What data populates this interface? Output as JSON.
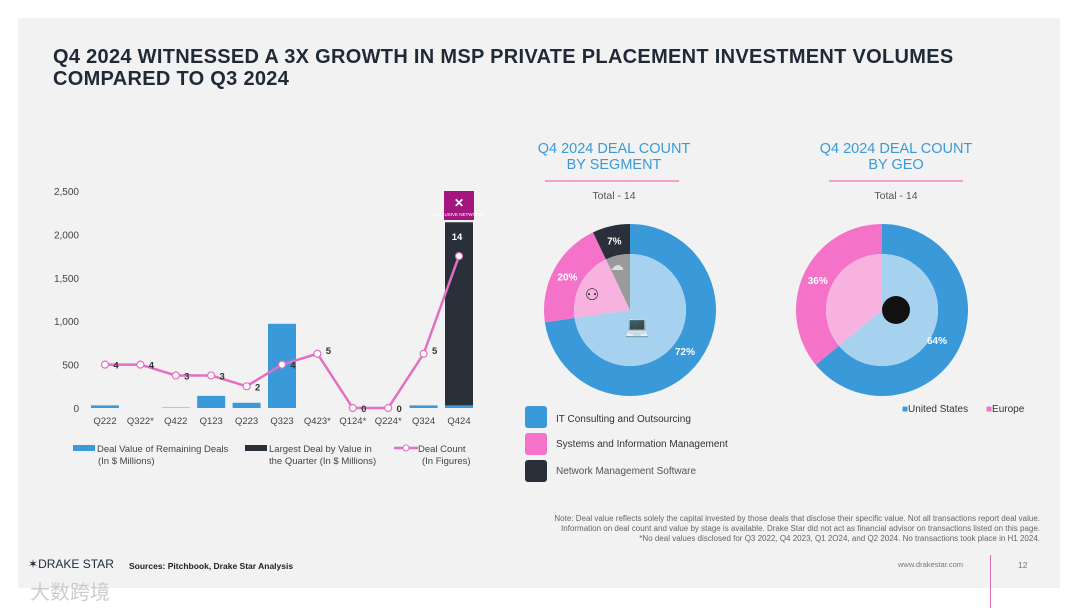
{
  "title_line1": "Q4 2024 WITNESSED A 3X GROWTH IN MSP PRIVATE PLACEMENT INVESTMENT VOLUMES",
  "title_line2": "COMPARED TO Q3 2024",
  "chart_data": [
    {
      "type": "bar",
      "title": "",
      "categories": [
        "Q222",
        "Q322*",
        "Q422",
        "Q123",
        "Q223",
        "Q323",
        "Q423*",
        "Q124*",
        "Q224*",
        "Q324",
        "Q424"
      ],
      "ylim": [
        0,
        2500
      ],
      "yticks": [
        "0",
        "500",
        "1,000",
        "1,500",
        "2,000",
        "2,500"
      ],
      "ytick_values": [
        0,
        500,
        1000,
        1500,
        2000,
        2500
      ],
      "series": [
        {
          "name": "Deal Value of Remaining Deals",
          "name2": "(In $ Millions)",
          "type": "bar",
          "color": "#3a9ad9",
          "values": [
            30,
            0,
            5,
            140,
            60,
            970,
            0,
            0,
            0,
            30,
            30
          ]
        },
        {
          "name": "Largest Deal by Value in",
          "name2": "the Quarter (In $ Millions)",
          "type": "bar",
          "color": "#2a3039",
          "values": [
            0,
            0,
            0,
            0,
            0,
            0,
            0,
            0,
            0,
            0,
            2110
          ]
        },
        {
          "name": "Deal Count",
          "name2": "(In Figures)",
          "type": "line",
          "color": "#e36fc4",
          "values": [
            4,
            4,
            3,
            3,
            2,
            4,
            5,
            0,
            0,
            5,
            14
          ],
          "scale_to_axis": 125
        }
      ],
      "annotation": "EXCLUSIVE NETWORKS"
    },
    {
      "type": "pie",
      "title_line1": "Q4 2024 DEAL COUNT",
      "title_line2": "BY SEGMENT",
      "total": "Total - 14",
      "slices": [
        {
          "label": "IT Consulting and Outsourcing",
          "value": 72,
          "text": "72%",
          "color": "#3a9ad9",
          "inner": "#a6d2ef"
        },
        {
          "label": "Systems and Information Management",
          "value": 20,
          "text": "20%",
          "color": "#f472c8",
          "inner": "#f8b2df"
        },
        {
          "label": "Network Management Software",
          "value": 7,
          "text": "7%",
          "color": "#2a3039",
          "inner": "#9a9a9a"
        }
      ]
    },
    {
      "type": "pie",
      "title_line1": "Q4 2024 DEAL COUNT",
      "title_line2": "BY GEO",
      "total": "Total - 14",
      "slices": [
        {
          "label": "United States",
          "value": 64,
          "text": "64%",
          "color": "#3a9ad9",
          "inner": "#a6d2ef"
        },
        {
          "label": "Europe",
          "value": 36,
          "text": "36%",
          "color": "#f472c8",
          "inner": "#f8b2df"
        }
      ]
    }
  ],
  "note": [
    "Note: Deal value reflects solely the capital invested by those deals that disclose their specific value. Not all transactions report deal value.",
    "Information on deal count and value by stage is available. Drake Star did not act as financial advisor on transactions listed on this page.",
    "*No deal values disclosed for Q3 2022, Q4 2023, Q1 2O24, and Q2 2024. No transactions took place in H1 2024."
  ],
  "logo": "DRAKE STAR",
  "sources": "Sources: Pitchbook, Drake Star Analysis",
  "website": "www.drakestar.com",
  "page": "12",
  "watermark": "大数跨境"
}
